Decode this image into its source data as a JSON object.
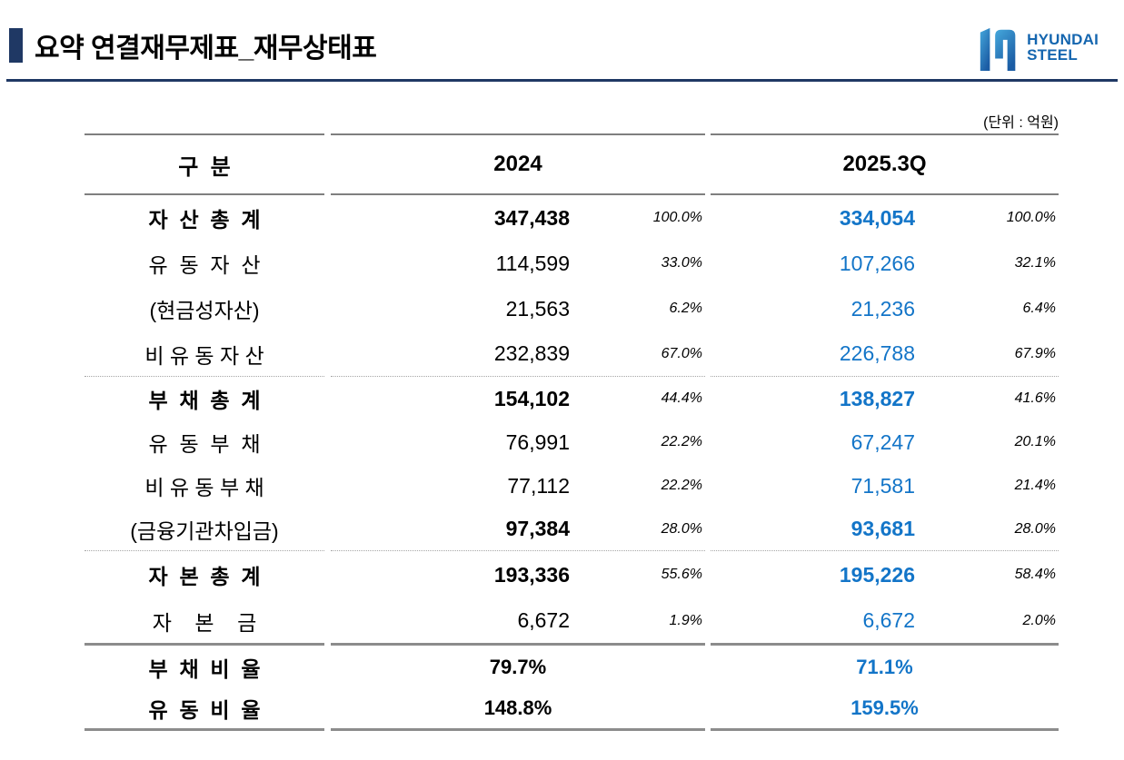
{
  "page": {
    "title": "요약 연결재무제표_재무상태표",
    "unit_note": "(단위 : 억원)"
  },
  "logo": {
    "line1": "HYUNDAI",
    "line2": "STEEL",
    "h_icon": "hyundai-steel-h-symbol"
  },
  "colors": {
    "title_navy": "#1f3864",
    "brand_blue": "#1566af",
    "value_blue": "#1375c8",
    "header_line_grey": "#7f7f7f",
    "thick_line_grey": "#8c8c8c"
  },
  "table": {
    "header": {
      "label": "구  분",
      "col2024": "2024",
      "col2025": "2025.3Q"
    },
    "sections": [
      {
        "divider": "dotted",
        "rows": [
          {
            "label": "자  산  총  계",
            "label_bold": true,
            "value_bold": true,
            "v2024": "347,438",
            "p2024": "100.0%",
            "v2025": "334,054",
            "p2025": "100.0%"
          },
          {
            "label": "유  동  자  산",
            "label_bold": false,
            "value_bold": false,
            "v2024": "114,599",
            "p2024": "33.0%",
            "v2025": "107,266",
            "p2025": "32.1%"
          },
          {
            "label": "(현금성자산)",
            "label_bold": false,
            "value_bold": false,
            "v2024": "21,563",
            "p2024": "6.2%",
            "v2025": "21,236",
            "p2025": "6.4%"
          },
          {
            "label": "비 유 동 자 산",
            "label_bold": false,
            "value_bold": false,
            "v2024": "232,839",
            "p2024": "67.0%",
            "v2025": "226,788",
            "p2025": "67.9%"
          }
        ]
      },
      {
        "divider": "dotted",
        "rows": [
          {
            "label": "부  채  총  계",
            "label_bold": true,
            "value_bold": true,
            "v2024": "154,102",
            "p2024": "44.4%",
            "v2025": "138,827",
            "p2025": "41.6%"
          },
          {
            "label": "유  동  부  채",
            "label_bold": false,
            "value_bold": false,
            "v2024": "76,991",
            "p2024": "22.2%",
            "v2025": "67,247",
            "p2025": "20.1%"
          },
          {
            "label": "비 유 동 부 채",
            "label_bold": false,
            "value_bold": false,
            "v2024": "77,112",
            "p2024": "22.2%",
            "v2025": "71,581",
            "p2025": "21.4%"
          },
          {
            "label": "(금융기관차입금)",
            "label_bold": false,
            "value_bold": true,
            "v2024": "97,384",
            "p2024": "28.0%",
            "v2025": "93,681",
            "p2025": "28.0%"
          }
        ]
      },
      {
        "divider": "solid",
        "rows": [
          {
            "label": "자  본  총  계",
            "label_bold": true,
            "value_bold": true,
            "v2024": "193,336",
            "p2024": "55.6%",
            "v2025": "195,226",
            "p2025": "58.4%"
          },
          {
            "label": "자    본    금",
            "label_bold": false,
            "value_bold": false,
            "v2024": "6,672",
            "p2024": "1.9%",
            "v2025": "6,672",
            "p2025": "2.0%"
          }
        ]
      },
      {
        "divider": "solid",
        "rows": [
          {
            "type": "ratio",
            "label": "부  채  비  율",
            "label_bold": true,
            "r2024": "79.7%",
            "r2025": "71.1%"
          },
          {
            "type": "ratio",
            "label": "유  동  비  율",
            "label_bold": true,
            "r2024": "148.8%",
            "r2025": "159.5%"
          }
        ]
      }
    ]
  }
}
